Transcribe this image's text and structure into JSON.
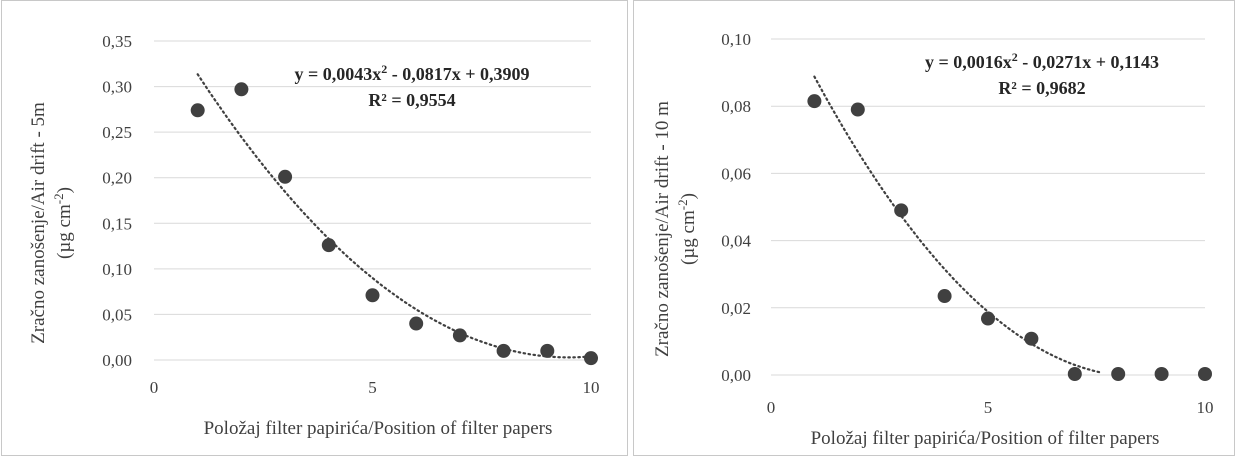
{
  "chart_data": [
    {
      "type": "scatter",
      "xlabel": "Položaj filter papirića/Position of filter papers",
      "ylabel": "Zračno zanošenje/Air drift - 5m",
      "ylabel_unit_pre": "(µg cm",
      "ylabel_unit_sup": "-2",
      "ylabel_unit_post": ")",
      "xlim": [
        0,
        10
      ],
      "ylim": [
        0,
        0.35
      ],
      "xticks": [
        0,
        5,
        10
      ],
      "xtick_labels": [
        "0",
        "5",
        "10"
      ],
      "yticks": [
        0,
        0.05,
        0.1,
        0.15,
        0.2,
        0.25,
        0.3,
        0.35
      ],
      "ytick_labels": [
        "0,00",
        "0,05",
        "0,10",
        "0,15",
        "0,20",
        "0,25",
        "0,30",
        "0,35"
      ],
      "grid": "horizontal",
      "series": [
        {
          "x": [
            1,
            2,
            3,
            4,
            5,
            6,
            7,
            8,
            9,
            10
          ],
          "y": [
            0.274,
            0.297,
            0.201,
            0.126,
            0.071,
            0.04,
            0.027,
            0.01,
            0.01,
            0.002
          ],
          "color": "#404040"
        }
      ],
      "trendline": {
        "type": "polynomial",
        "coefficients": [
          0.0043,
          -0.0817,
          0.3909
        ],
        "x_range": [
          1,
          10
        ],
        "equation_pre": "y = 0,0043x",
        "equation_sup": "2",
        "equation_post": " - 0,0817x + 0,3909",
        "r2_label": "R² = 0,9554"
      }
    },
    {
      "type": "scatter",
      "xlabel": "Položaj filter papirića/Position of filter papers",
      "ylabel": "Zračno zanošenje/Air  drift - 10 m",
      "ylabel_unit_pre": "(µg cm",
      "ylabel_unit_sup": "-2",
      "ylabel_unit_post": ")",
      "xlim": [
        0,
        10
      ],
      "ylim": [
        0,
        0.1
      ],
      "xticks": [
        0,
        5,
        10
      ],
      "xtick_labels": [
        "0",
        "5",
        "10"
      ],
      "yticks": [
        0,
        0.02,
        0.04,
        0.06,
        0.08,
        0.1
      ],
      "ytick_labels": [
        "0,00",
        "0,02",
        "0,04",
        "0,06",
        "0,08",
        "0,10"
      ],
      "grid": "horizontal",
      "series": [
        {
          "x": [
            1,
            2,
            3,
            4,
            5,
            6,
            7,
            8,
            9,
            10
          ],
          "y": [
            0.0815,
            0.079,
            0.049,
            0.0235,
            0.0168,
            0.0108,
            0.0003,
            0.0003,
            0.0003,
            0.0003
          ],
          "color": "#404040"
        }
      ],
      "trendline": {
        "type": "polynomial",
        "coefficients": [
          0.0016,
          -0.0271,
          0.1143
        ],
        "x_range": [
          1,
          7.6
        ],
        "equation_pre": "y = 0,0016x",
        "equation_sup": "2",
        "equation_post": " - 0,0271x + 0,1143",
        "r2_label": "R² = 0,9682"
      }
    }
  ]
}
